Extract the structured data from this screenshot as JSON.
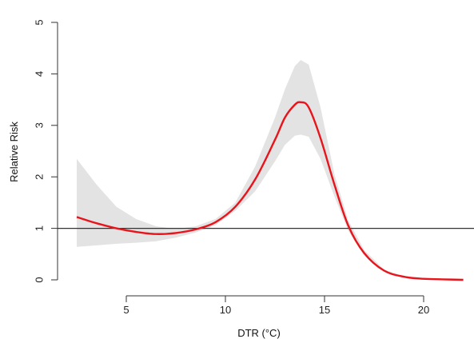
{
  "chart_data": {
    "type": "line",
    "title": "",
    "xlabel": "DTR (°C)",
    "ylabel": "Relative Risk",
    "xlim": [
      2.5,
      22.2
    ],
    "ylim": [
      0,
      5
    ],
    "x_ticks": [
      5,
      10,
      15,
      20
    ],
    "y_ticks": [
      0,
      1,
      2,
      3,
      4,
      5
    ],
    "grid": false,
    "reference_line": {
      "y": 1,
      "color": "#333333"
    },
    "series": [
      {
        "color": "#e8141b",
        "x": [
          2.5,
          3.5,
          4.5,
          5.5,
          6.5,
          7.5,
          8.5,
          9.5,
          10.5,
          11.5,
          12.5,
          13.0,
          13.5,
          13.8,
          14.2,
          14.8,
          15.5,
          16.2,
          17.0,
          18.0,
          19.0,
          20.0,
          21.0,
          22.0
        ],
        "y": [
          1.22,
          1.1,
          1.0,
          0.93,
          0.89,
          0.91,
          0.98,
          1.12,
          1.42,
          1.95,
          2.72,
          3.15,
          3.4,
          3.45,
          3.35,
          2.75,
          1.85,
          1.05,
          0.52,
          0.18,
          0.06,
          0.02,
          0.01,
          0.0
        ],
        "ci_lower": [
          0.64,
          0.67,
          0.7,
          0.72,
          0.75,
          0.82,
          0.92,
          1.06,
          1.34,
          1.72,
          2.3,
          2.62,
          2.8,
          2.82,
          2.78,
          2.35,
          1.62,
          0.95,
          0.47,
          0.16,
          0.05,
          0.02,
          0.01,
          0.0
        ],
        "ci_upper": [
          2.35,
          1.85,
          1.42,
          1.18,
          1.04,
          0.99,
          1.04,
          1.18,
          1.5,
          2.2,
          3.15,
          3.7,
          4.15,
          4.27,
          4.18,
          3.35,
          2.05,
          1.15,
          0.58,
          0.2,
          0.07,
          0.03,
          0.02,
          0.01
        ]
      }
    ],
    "band_color": "#e3e3e3"
  }
}
